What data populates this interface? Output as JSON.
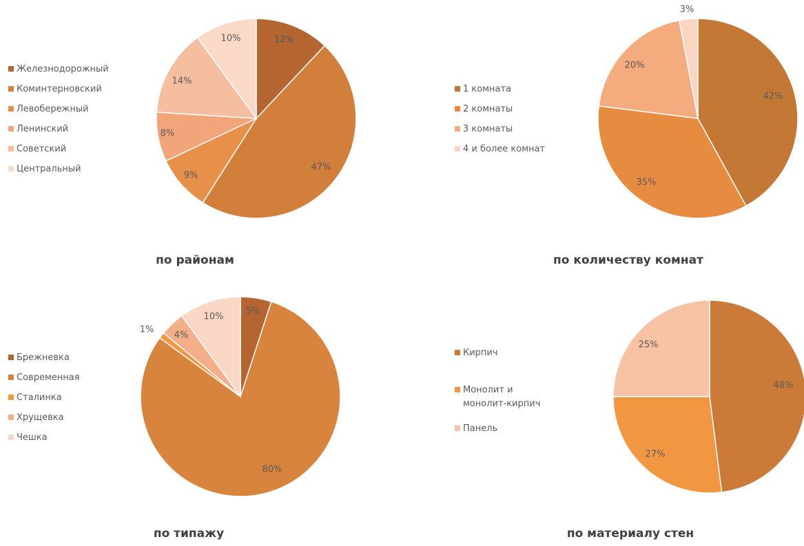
{
  "chart_data": [
    {
      "type": "pie",
      "caption": "по районам",
      "legend_position": "left",
      "slices": [
        {
          "label": "Железнодорожный",
          "value": 12,
          "label_text": "12%",
          "color": "#B5652F"
        },
        {
          "label": "Коминтерновский",
          "value": 47,
          "label_text": "47%",
          "color": "#D27F3B"
        },
        {
          "label": "Левобережный",
          "value": 9,
          "label_text": "9%",
          "color": "#E6904A"
        },
        {
          "label": "Ленинский",
          "value": 8,
          "label_text": "8%",
          "color": "#F2A57A"
        },
        {
          "label": "Советский",
          "value": 14,
          "label_text": "14%",
          "color": "#F6BEA0"
        },
        {
          "label": "Центральный",
          "value": 10,
          "label_text": "10%",
          "color": "#FAD9C7"
        }
      ]
    },
    {
      "type": "pie",
      "caption": "по количеству комнат",
      "legend_position": "left",
      "slices": [
        {
          "label": "1 комната",
          "value": 42,
          "label_text": "42%",
          "color": "#C47836"
        },
        {
          "label": "2 комнаты",
          "value": 35,
          "label_text": "35%",
          "color": "#E68B40"
        },
        {
          "label": "3 комнаты",
          "value": 20,
          "label_text": "20%",
          "color": "#F4AB7E"
        },
        {
          "label": "4 и более комнат",
          "value": 3,
          "label_text": "3%",
          "color": "#FAD6C2"
        }
      ]
    },
    {
      "type": "pie",
      "caption": "по типажу",
      "legend_position": "left",
      "slices": [
        {
          "label": "Брежневка",
          "value": 5,
          "label_text": "5%",
          "color": "#B5652F"
        },
        {
          "label": "Современная",
          "value": 80,
          "label_text": "80%",
          "color": "#D8843D"
        },
        {
          "label": "Сталинка",
          "value": 1,
          "label_text": "1%",
          "color": "#F0973F"
        },
        {
          "label": "Хрущевка",
          "value": 4,
          "label_text": "4%",
          "color": "#F4AE88"
        },
        {
          "label": "Чешка",
          "value": 10,
          "label_text": "10%",
          "color": "#FAD6C4"
        }
      ]
    },
    {
      "type": "pie",
      "caption": "по материалу стен",
      "legend_position": "left",
      "slices": [
        {
          "label": "Кирпич",
          "value": 48,
          "label_text": "48%",
          "color": "#CC7A38"
        },
        {
          "label": "Монолит и монолит-кирпич",
          "value": 27,
          "label_text": "27%",
          "color": "#F29741"
        },
        {
          "label": "Панель",
          "value": 25,
          "label_text": "25%",
          "color": "#F8C2A5"
        }
      ]
    }
  ]
}
